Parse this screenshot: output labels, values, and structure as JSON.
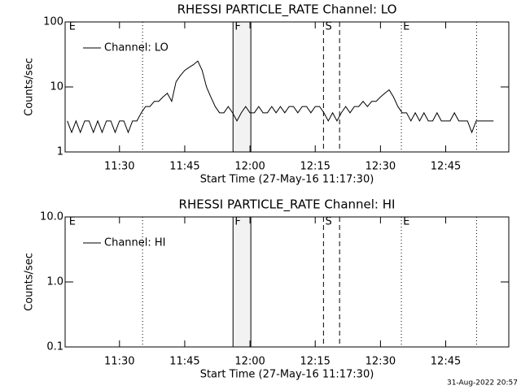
{
  "chart_data": [
    {
      "type": "line",
      "title": "RHESSI PARTICLE_RATE Channel: LO",
      "xlabel": "Start Time (27-May-16 11:17:30)",
      "ylabel": "Counts/sec",
      "xlim": [
        677.5,
        779.5
      ],
      "xticks": [
        {
          "value": 690,
          "label": "11:30"
        },
        {
          "value": 705,
          "label": "11:45"
        },
        {
          "value": 720,
          "label": "12:00"
        },
        {
          "value": 735,
          "label": "12:15"
        },
        {
          "value": 750,
          "label": "12:30"
        },
        {
          "value": 765,
          "label": "12:45"
        }
      ],
      "ylim": [
        1,
        100
      ],
      "yticks": [
        1,
        10,
        100
      ],
      "log_y": true,
      "legend": "upper left",
      "shade": [
        716.1,
        720.2
      ],
      "markers": [
        {
          "x": 695.3,
          "dash": "dotted"
        },
        {
          "x": 716.1,
          "dash": "solid"
        },
        {
          "x": 720.2,
          "dash": "solid"
        },
        {
          "x": 736.9,
          "dash": "dashed"
        },
        {
          "x": 740.6,
          "dash": "dashed"
        },
        {
          "x": 754.8,
          "dash": "dotted"
        },
        {
          "x": 772.1,
          "dash": "dotted"
        }
      ],
      "annotations": [
        {
          "text": "E",
          "x": 678.2
        },
        {
          "text": "F",
          "x": 716.3
        },
        {
          "text": "S",
          "x": 737.1
        },
        {
          "text": "E",
          "x": 755
        }
      ],
      "x": [
        678,
        679,
        680,
        681,
        682,
        683,
        684,
        685,
        686,
        687,
        688,
        689,
        690,
        691,
        692,
        693,
        694,
        695,
        696,
        697,
        698,
        699,
        700,
        701,
        702,
        703,
        704,
        705,
        706,
        707,
        708,
        709,
        710,
        711,
        712,
        713,
        714,
        715,
        716,
        717,
        718,
        719,
        720,
        721,
        722,
        723,
        724,
        725,
        726,
        727,
        728,
        729,
        730,
        731,
        732,
        733,
        734,
        735,
        736,
        737,
        738,
        739,
        740,
        741,
        742,
        743,
        744,
        745,
        746,
        747,
        748,
        749,
        750,
        751,
        752,
        753,
        754,
        755,
        756,
        757,
        758,
        759,
        760,
        761,
        762,
        763,
        764,
        765,
        766,
        767,
        768,
        769,
        770,
        771,
        772,
        773,
        774,
        775,
        776
      ],
      "series": [
        {
          "name": "Channel: LO",
          "color": "#000000",
          "values": [
            3,
            2,
            3,
            2,
            3,
            3,
            2,
            3,
            2,
            3,
            3,
            2,
            3,
            3,
            2,
            3,
            3,
            4,
            5,
            5,
            6,
            6,
            7,
            8,
            6,
            12,
            15,
            18,
            20,
            22,
            25,
            18,
            10,
            7,
            5,
            4,
            4,
            5,
            4,
            3,
            4,
            5,
            4,
            4,
            5,
            4,
            4,
            5,
            4,
            5,
            4,
            5,
            5,
            4,
            5,
            5,
            4,
            5,
            5,
            4,
            3,
            4,
            3,
            4,
            5,
            4,
            5,
            5,
            6,
            5,
            6,
            6,
            7,
            8,
            9,
            7,
            5,
            4,
            4,
            3,
            4,
            3,
            4,
            3,
            3,
            4,
            3,
            3,
            3,
            4,
            3,
            3,
            3,
            2,
            3,
            3,
            3,
            3,
            3
          ]
        }
      ]
    },
    {
      "type": "line",
      "title": "RHESSI PARTICLE_RATE Channel: HI",
      "xlabel": "Start Time (27-May-16 11:17:30)",
      "ylabel": "Counts/sec",
      "xlim": [
        677.5,
        779.5
      ],
      "xticks": [
        {
          "value": 690,
          "label": "11:30"
        },
        {
          "value": 705,
          "label": "11:45"
        },
        {
          "value": 720,
          "label": "12:00"
        },
        {
          "value": 735,
          "label": "12:15"
        },
        {
          "value": 750,
          "label": "12:30"
        },
        {
          "value": 765,
          "label": "12:45"
        }
      ],
      "ylim": [
        0.1,
        10
      ],
      "yticks": [
        0.1,
        {
          "value": 1,
          "label": "1.0"
        },
        {
          "value": 10,
          "label": "10.0"
        }
      ],
      "log_y": true,
      "legend": "upper left",
      "shade": [
        716.1,
        720.2
      ],
      "markers": [
        {
          "x": 695.3,
          "dash": "dotted"
        },
        {
          "x": 716.1,
          "dash": "solid"
        },
        {
          "x": 720.2,
          "dash": "solid"
        },
        {
          "x": 736.9,
          "dash": "dashed"
        },
        {
          "x": 740.6,
          "dash": "dashed"
        },
        {
          "x": 754.8,
          "dash": "dotted"
        },
        {
          "x": 772.1,
          "dash": "dotted"
        }
      ],
      "annotations": [
        {
          "text": "E",
          "x": 678.2
        },
        {
          "text": "F",
          "x": 716.3
        },
        {
          "text": "S",
          "x": 737.1
        },
        {
          "text": "E",
          "x": 755
        }
      ],
      "x": [],
      "series": [
        {
          "name": "Channel: HI",
          "color": "#000000",
          "values": []
        }
      ]
    }
  ],
  "timestamp": "31-Aug-2022 20:57"
}
